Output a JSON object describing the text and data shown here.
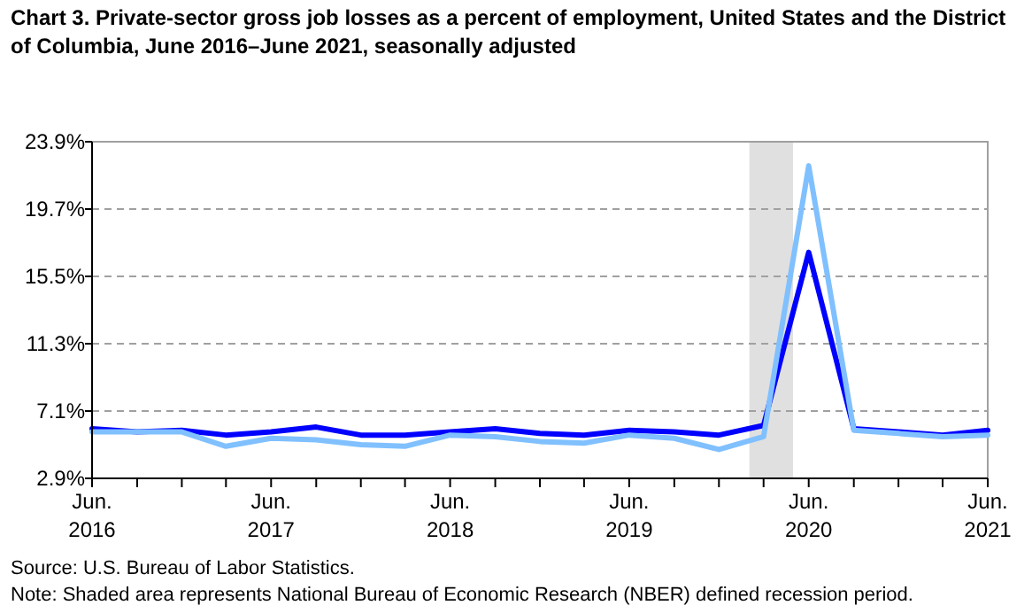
{
  "chart_data": {
    "type": "line",
    "title": "Chart 3. Private-sector gross job losses as a percent of employment, United States and the District of Columbia, June 2016–June 2021, seasonally adjusted",
    "x": [
      "2016-06",
      "2016-09",
      "2016-12",
      "2017-03",
      "2017-06",
      "2017-09",
      "2017-12",
      "2018-03",
      "2018-06",
      "2018-09",
      "2018-12",
      "2019-03",
      "2019-06",
      "2019-09",
      "2019-12",
      "2020-03",
      "2020-06",
      "2020-09",
      "2020-12",
      "2021-03",
      "2021-06"
    ],
    "series": [
      {
        "color": "#0000ff",
        "values": [
          6.0,
          5.8,
          5.9,
          5.6,
          5.8,
          6.1,
          5.6,
          5.6,
          5.8,
          6.0,
          5.7,
          5.6,
          5.9,
          5.8,
          5.6,
          6.2,
          17.0,
          6.0,
          5.8,
          5.6,
          5.9
        ]
      },
      {
        "color": "#80c0ff",
        "values": [
          5.8,
          5.8,
          5.8,
          4.9,
          5.4,
          5.3,
          5.0,
          4.9,
          5.6,
          5.5,
          5.2,
          5.1,
          5.6,
          5.4,
          4.7,
          5.5,
          22.4,
          5.9,
          5.7,
          5.5,
          5.6
        ]
      }
    ],
    "xlim": [
      "2016-06",
      "2021-06"
    ],
    "xticks": [
      {
        "value": "2016-06",
        "label": "Jun. 2016"
      },
      {
        "value": "2016-09",
        "label": null
      },
      {
        "value": "2016-12",
        "label": null
      },
      {
        "value": "2017-03",
        "label": null
      },
      {
        "value": "2017-06",
        "label": "Jun. 2017"
      },
      {
        "value": "2017-09",
        "label": null
      },
      {
        "value": "2017-12",
        "label": null
      },
      {
        "value": "2018-03",
        "label": null
      },
      {
        "value": "2018-06",
        "label": "Jun. 2018"
      },
      {
        "value": "2018-09",
        "label": null
      },
      {
        "value": "2018-12",
        "label": null
      },
      {
        "value": "2019-03",
        "label": null
      },
      {
        "value": "2019-06",
        "label": "Jun. 2019"
      },
      {
        "value": "2019-09",
        "label": null
      },
      {
        "value": "2019-12",
        "label": null
      },
      {
        "value": "2020-03",
        "label": null
      },
      {
        "value": "2020-06",
        "label": "Jun. 2020"
      },
      {
        "value": "2020-09",
        "label": null
      },
      {
        "value": "2020-12",
        "label": null
      },
      {
        "value": "2021-03",
        "label": null
      },
      {
        "value": "2021-06",
        "label": "Jun. 2021"
      }
    ],
    "ylim": [
      2.9,
      23.9
    ],
    "yticks": [
      {
        "value": 2.9,
        "label": "2.9%"
      },
      {
        "value": 7.1,
        "label": "7.1%"
      },
      {
        "value": 11.3,
        "label": "11.3%"
      },
      {
        "value": 15.5,
        "label": "15.5%"
      },
      {
        "value": 19.7,
        "label": "19.7%"
      },
      {
        "value": 23.9,
        "label": "23.9%"
      }
    ],
    "grid": "y",
    "marker": "none",
    "line_style": "solid",
    "bands": [
      {
        "axis": "x",
        "from": "2020-02",
        "to": "2020-04-30",
        "color": "#e0e0e0"
      }
    ],
    "annotations": [
      "Source: U.S. Bureau of Labor Statistics.",
      "Note: Shaded area represents National Bureau of Economic Research (NBER) defined recession period."
    ]
  }
}
